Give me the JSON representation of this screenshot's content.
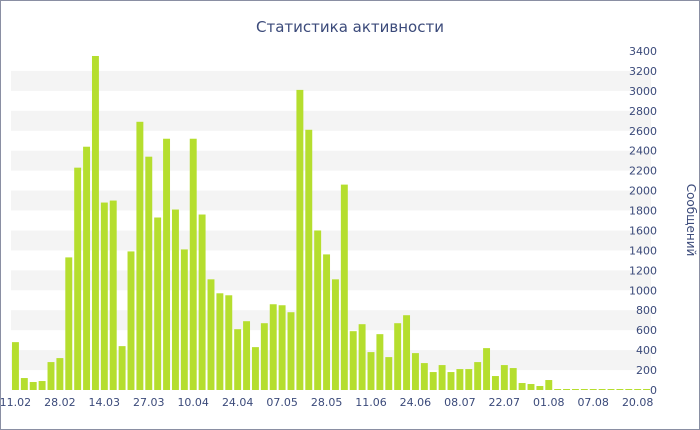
{
  "chart_data": {
    "type": "bar",
    "title": "Статистика активности",
    "ylabel": "Сообщений",
    "xlabel": "",
    "ylim": [
      0,
      3400
    ],
    "y_ticks": [
      0,
      200,
      400,
      600,
      800,
      1000,
      1200,
      1400,
      1600,
      1800,
      2000,
      2200,
      2400,
      2600,
      2800,
      3000,
      3200,
      3400
    ],
    "y_axis_side": "right",
    "grid": "horizontal alternating bands",
    "legend": "none",
    "bar_color": "#b5de2e",
    "band_color": "#f4f4f4",
    "x_tick_labels": [
      {
        "label": "11.02",
        "index": 0
      },
      {
        "label": "28.02",
        "index": 5
      },
      {
        "label": "14.03",
        "index": 10
      },
      {
        "label": "27.03",
        "index": 15
      },
      {
        "label": "10.04",
        "index": 20
      },
      {
        "label": "24.04",
        "index": 25
      },
      {
        "label": "07.05",
        "index": 30
      },
      {
        "label": "28.05",
        "index": 35
      },
      {
        "label": "11.06",
        "index": 40
      },
      {
        "label": "24.06",
        "index": 45
      },
      {
        "label": "08.07",
        "index": 50
      },
      {
        "label": "22.07",
        "index": 55
      },
      {
        "label": "01.08",
        "index": 60
      },
      {
        "label": "07.08",
        "index": 65
      },
      {
        "label": "20.08",
        "index": 70
      }
    ],
    "values": [
      480,
      120,
      80,
      90,
      280,
      320,
      1330,
      2230,
      2440,
      3350,
      1880,
      1900,
      440,
      1390,
      2690,
      2340,
      1730,
      2520,
      1810,
      1410,
      2520,
      1760,
      1110,
      970,
      950,
      610,
      690,
      430,
      670,
      860,
      850,
      780,
      3010,
      2610,
      1600,
      1360,
      1110,
      2060,
      590,
      660,
      380,
      560,
      330,
      670,
      750,
      370,
      270,
      180,
      250,
      180,
      210,
      210,
      280,
      420,
      140,
      250,
      220,
      70,
      60,
      40,
      100,
      10,
      10,
      10,
      10,
      10,
      10,
      10,
      10,
      10,
      10,
      10
    ]
  }
}
